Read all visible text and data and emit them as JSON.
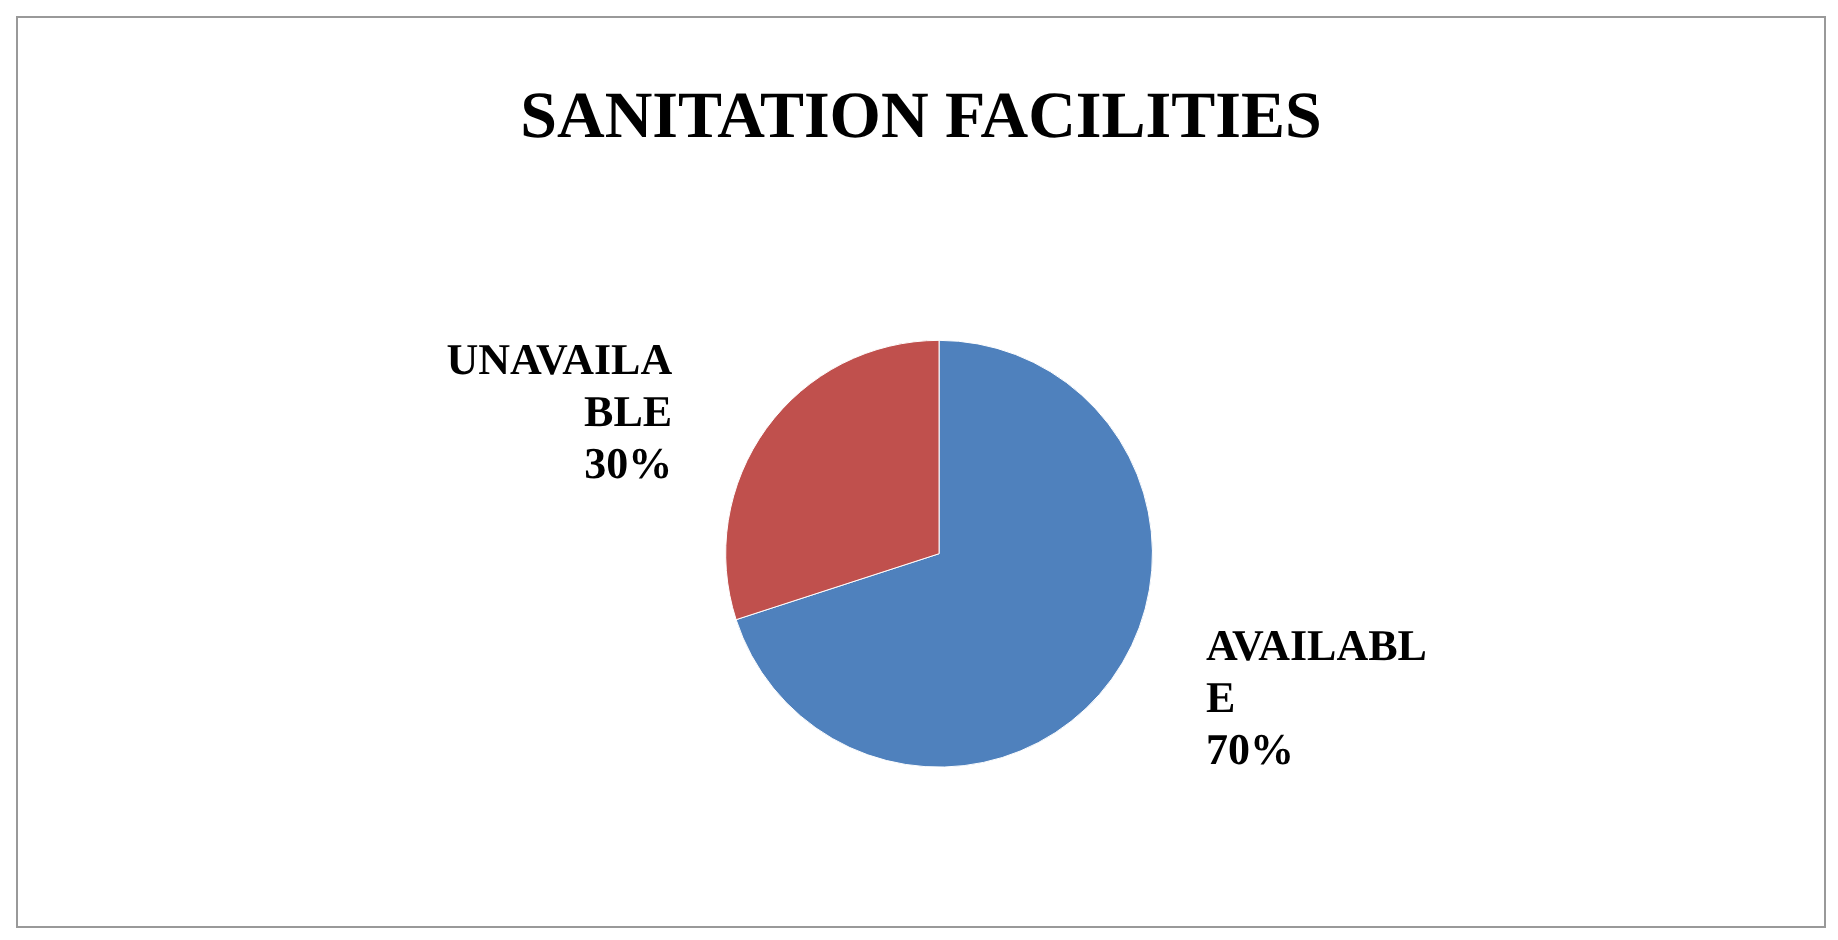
{
  "chart_data": {
    "type": "pie",
    "title": "SANITATION FACILITIES",
    "categories": [
      "AVAILABLE",
      "UNAVAILABLE"
    ],
    "values": [
      70,
      30
    ],
    "value_labels": [
      "70%",
      "30%"
    ],
    "colors": [
      "#4f81bd",
      "#c0504d"
    ]
  }
}
